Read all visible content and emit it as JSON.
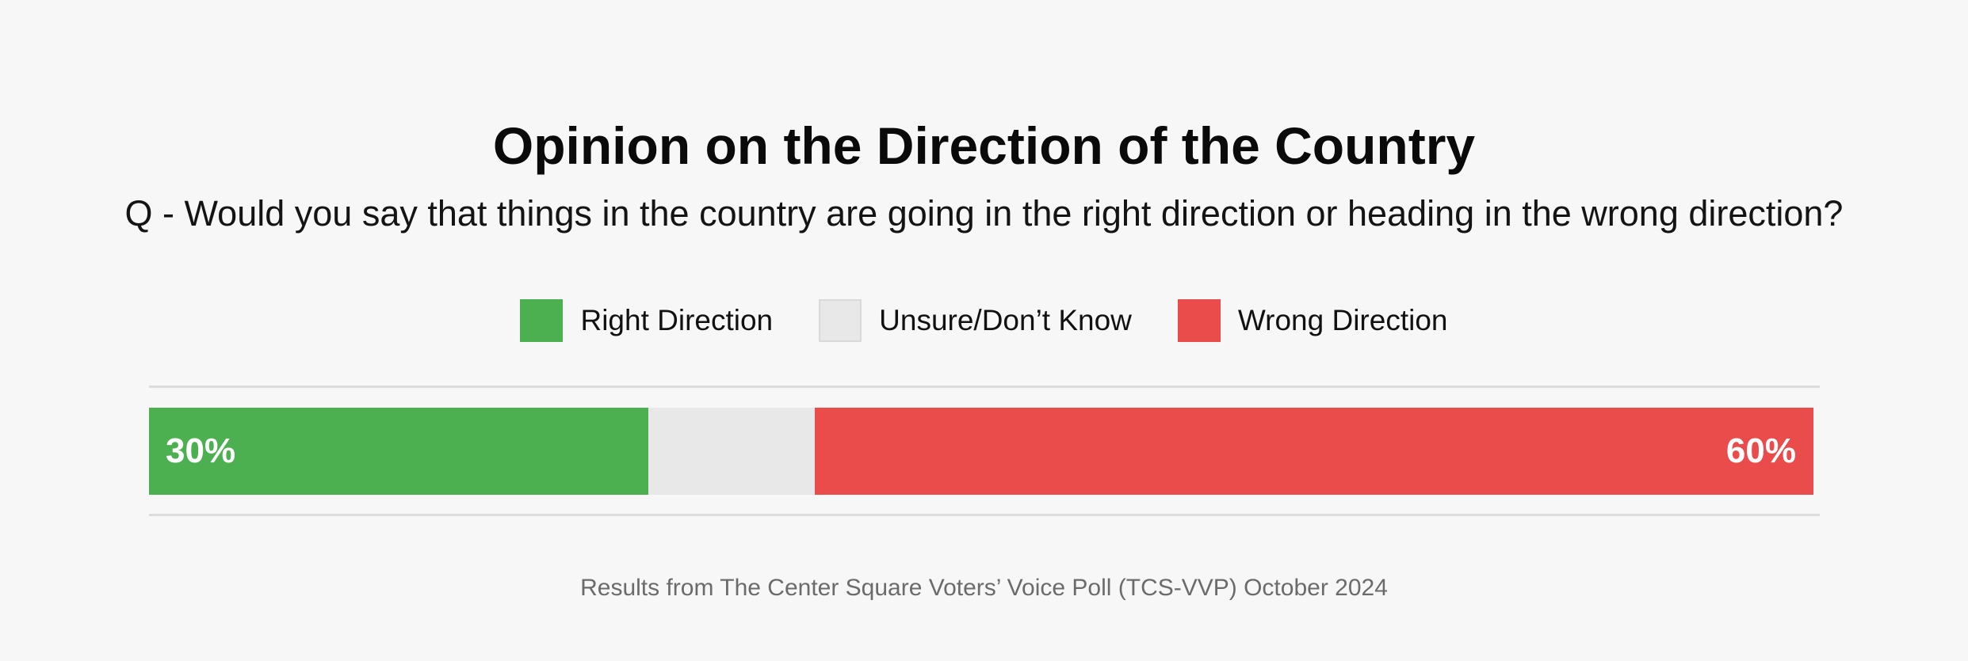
{
  "chart_data": {
    "type": "bar",
    "orientation": "horizontal",
    "stacked": true,
    "title": "Opinion on the Direction of the Country",
    "subtitle": "Q - Would you say that things in the country are going in the right direction or heading in the wrong direction?",
    "legend_position": "top",
    "xlim": [
      0,
      100
    ],
    "grid": "horizontal rules above and below bar only",
    "series": [
      {
        "name": "Right Direction",
        "value": 30,
        "data_label": "30%",
        "color": "#4caf50"
      },
      {
        "name": "Unsure/Don’t Know",
        "value": 10,
        "data_label": "",
        "color": "#e8e8e8"
      },
      {
        "name": "Wrong Direction",
        "value": 60,
        "data_label": "60%",
        "color": "#ea4c4c"
      }
    ],
    "source_note": "Results from The Center Square Voters’ Voice Poll (TCS-VVP) October 2024"
  },
  "colors": {
    "background": "#f7f7f7",
    "rule": "#dcdcdc",
    "title_text": "#0a0a0a",
    "subtitle_text": "#141414",
    "legend_text": "#111111",
    "bar_label_text": "#ffffff",
    "source_text": "#6b6b6b"
  }
}
